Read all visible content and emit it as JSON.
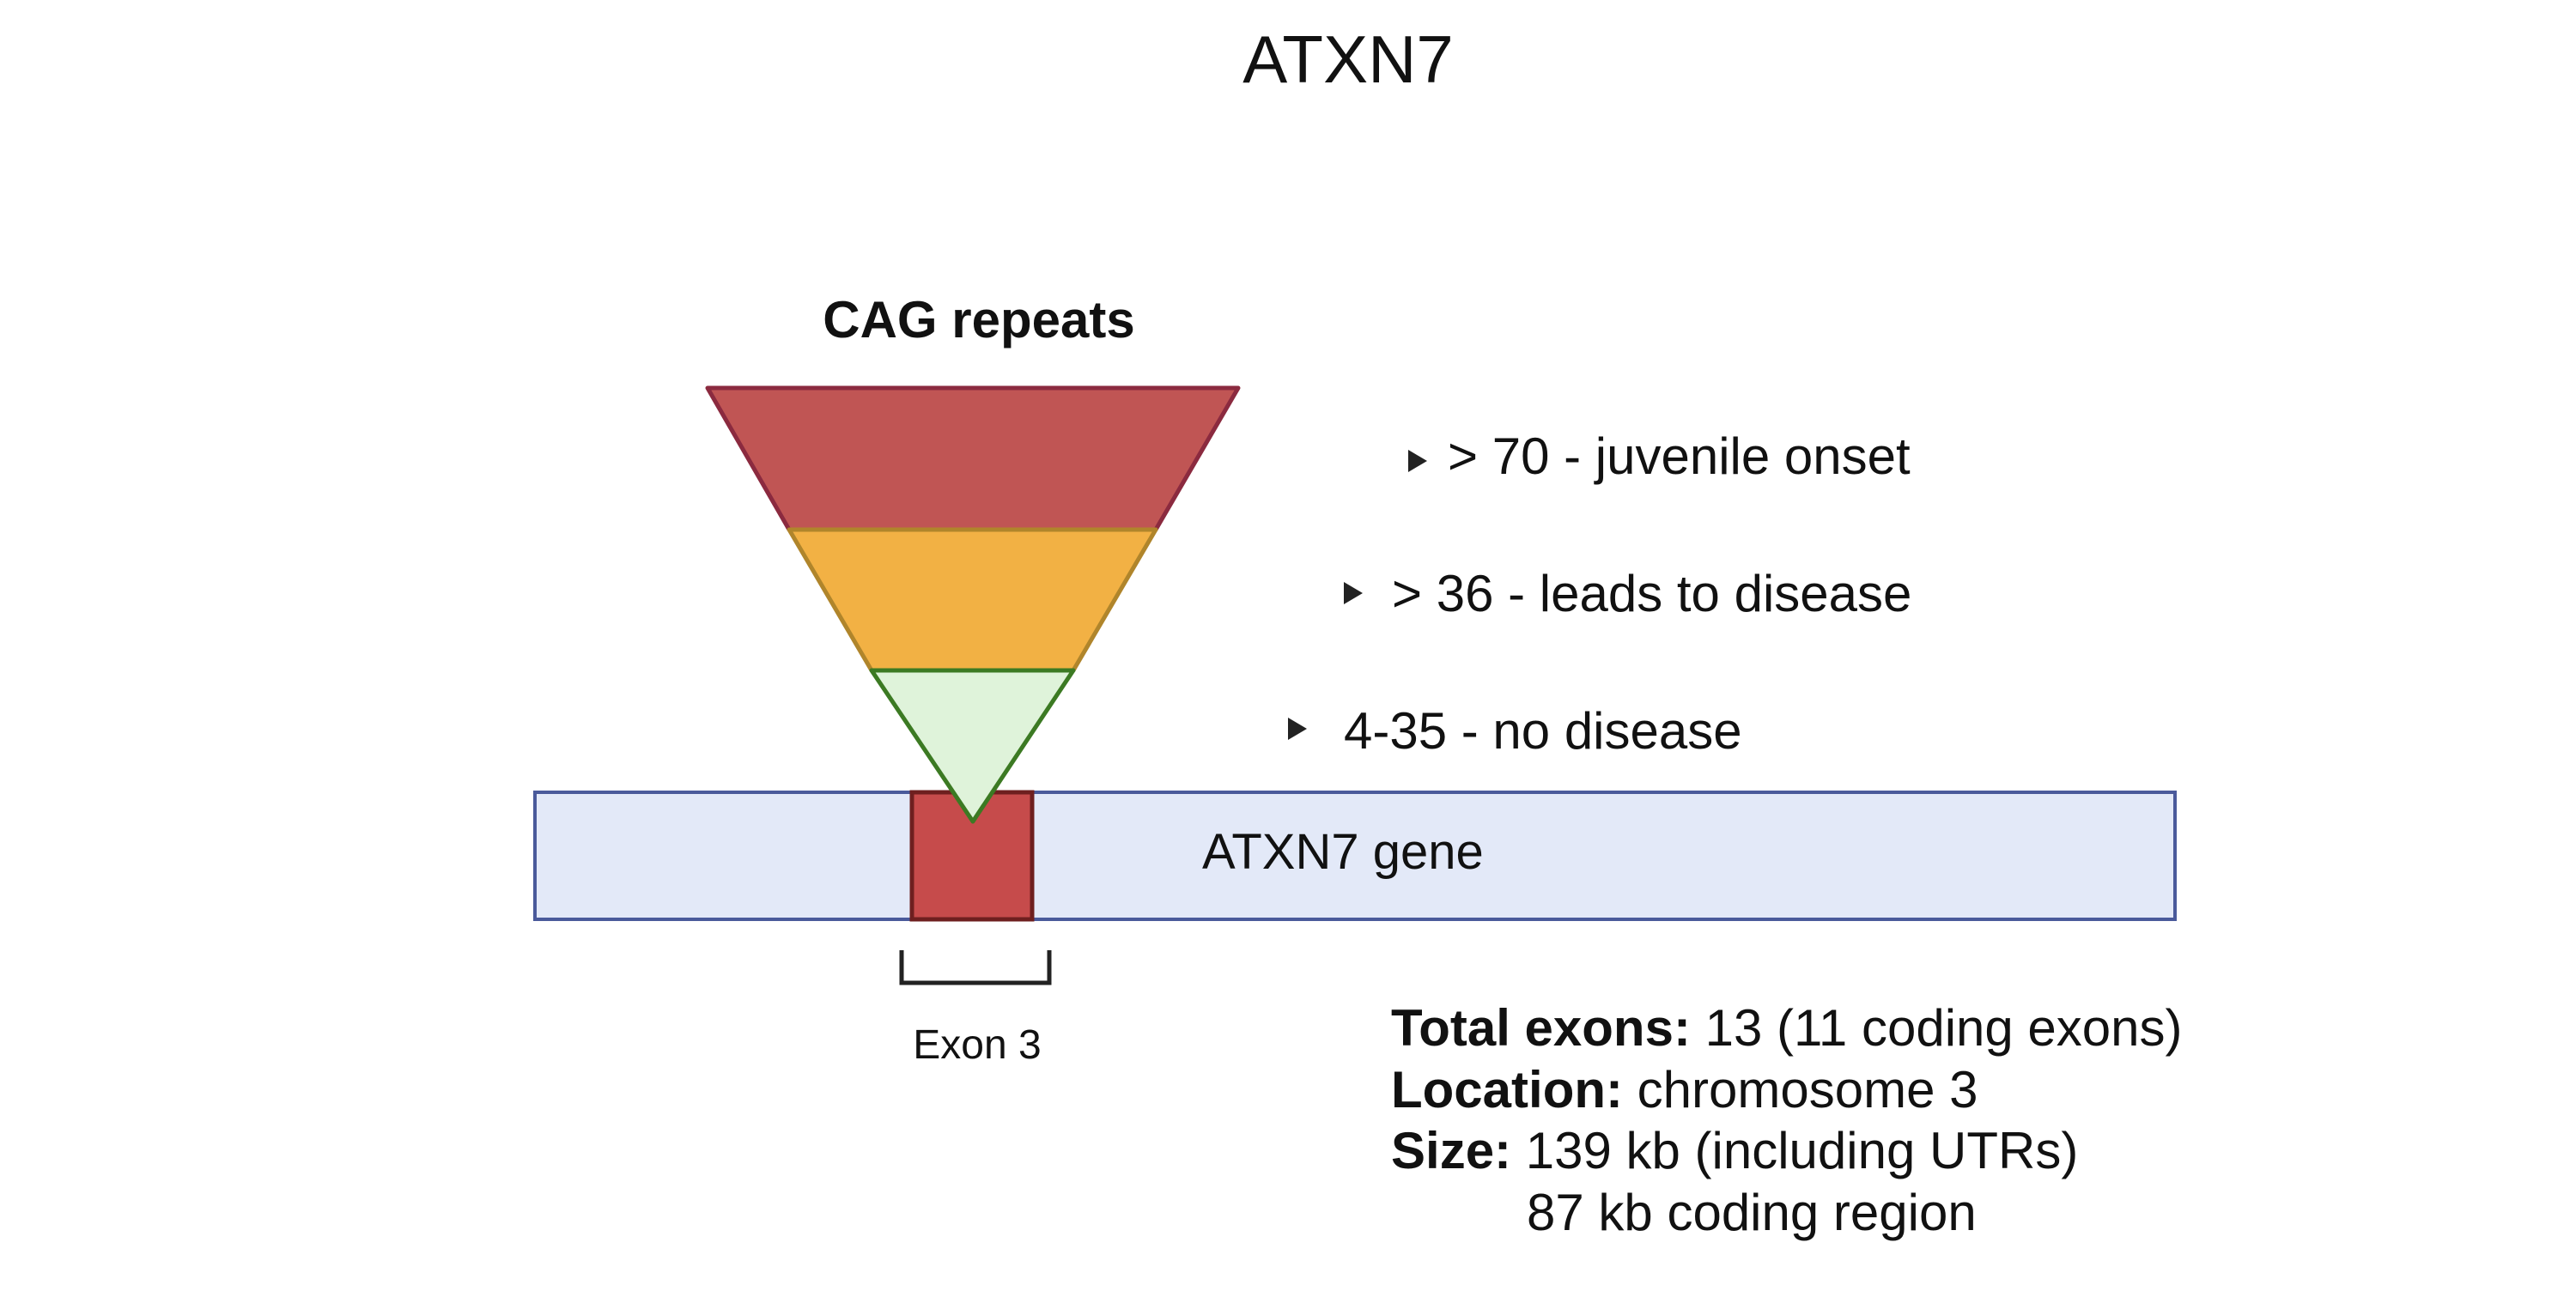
{
  "title": "ATXN7",
  "funnel": {
    "heading": "CAG repeats",
    "tiers": [
      {
        "label": "> 70 - juvenile onset",
        "fill": "#c05554",
        "stroke": "#8b2a3f"
      },
      {
        "label": "> 36 - leads to disease",
        "fill": "#f2b144",
        "stroke": "#b0852b"
      },
      {
        "label": "4-35 - no disease",
        "fill": "#dff3da",
        "stroke": "#3c7a23"
      }
    ]
  },
  "gene": {
    "label": "ATXN7 gene",
    "bar_fill": "#e3e9f8",
    "bar_stroke": "#4a5a9b",
    "exon_fill": "#c64b4b",
    "exon_stroke": "#6e1f1f",
    "exon_label": "Exon 3"
  },
  "info": {
    "total_exons_label": "Total exons:",
    "total_exons_value": " 13 (11 coding exons)",
    "location_label": "Location:",
    "location_value": " chromosome 3",
    "size_label": "Size:",
    "size_value": " 139 kb (including UTRs)",
    "size_value_2": "87 kb coding region"
  }
}
